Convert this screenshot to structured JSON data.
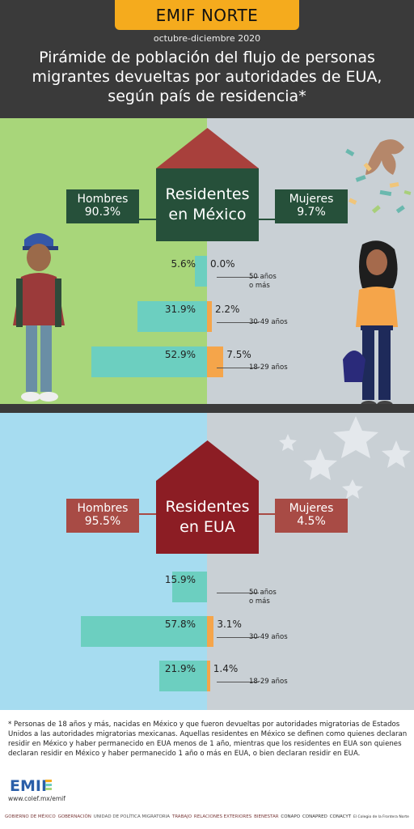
{
  "header": {
    "brand": "EMIF NORTE",
    "period": "octubre-diciembre 2020",
    "title": "Pirámide de población del flujo de personas migrantes devueltas por autoridades de EUA, según país de residencia*"
  },
  "colors": {
    "header_bg": "#3a3a3a",
    "accent": "#f5ab1d",
    "men_bar": "#6ccfc0",
    "women_bar": "#f5a54a",
    "mx_left_bg": "#a8d67a",
    "mx_right_bg": "#c9d0d5",
    "mx_house": "#26503a",
    "mx_roof": "#a8403c",
    "us_left_bg": "#a6dcf0",
    "us_right_bg": "#c9d0d5",
    "us_house": "#8c1d24",
    "us_roof": "#8c1d24",
    "us_tag": "#a84b45"
  },
  "chart_data": [
    {
      "type": "bar",
      "house_title_1": "Residentes",
      "house_title_2": "en México",
      "men_label": "Hombres",
      "men_total": "90.3%",
      "women_label": "Mujeres",
      "women_total": "9.7%",
      "categories": [
        "50 años o más",
        "30-49 años",
        "18-29 años"
      ],
      "age_line1": [
        "50 años",
        "30-49  años",
        "18-29 años"
      ],
      "age_line2": [
        "o más",
        "",
        ""
      ],
      "series": [
        {
          "name": "Hombres",
          "values": [
            5.6,
            31.9,
            52.9
          ],
          "labels": [
            "5.6%",
            "31.9%",
            "52.9%"
          ]
        },
        {
          "name": "Mujeres",
          "values": [
            0.0,
            2.2,
            7.5
          ],
          "labels": [
            "0.0%",
            "2.2%",
            "7.5%"
          ]
        }
      ]
    },
    {
      "type": "bar",
      "house_title_1": "Residentes",
      "house_title_2": "en EUA",
      "men_label": "Hombres",
      "men_total": "95.5%",
      "women_label": "Mujeres",
      "women_total": "4.5%",
      "categories": [
        "50 años o más",
        "30-49 años",
        "18-29 años"
      ],
      "age_line1": [
        "50 años",
        "30-49  años",
        "18-29 años"
      ],
      "age_line2": [
        "o más",
        "",
        ""
      ],
      "series": [
        {
          "name": "Hombres",
          "values": [
            15.9,
            57.8,
            21.9
          ],
          "labels": [
            "15.9%",
            "57.8%",
            "21.9%"
          ]
        },
        {
          "name": "Mujeres",
          "values": [
            0.0,
            3.1,
            1.4
          ],
          "labels": [
            "",
            "3.1%",
            "1.4%"
          ]
        }
      ]
    }
  ],
  "footer": {
    "footnote": "* Personas de 18 años y más, nacidas en México y que fueron devueltas por autoridades migratorias de Estados Unidos a las autoridades migratorias mexicanas. Aquellas residentes en México se definen como quienes declaran residir en México y haber permanecido en EUA menos de 1 año, mientras que los residentes en EUA son quienes declaran residir en México y haber permanecido 1 año o más en EUA, o bien declaran residir en EUA.",
    "logo": "EMIF",
    "site": "www.colef.mx/emif",
    "orgs": [
      "GOBIERNO DE MÉXICO",
      "GOBERNACIÓN",
      "UNIDAD DE POLÍTICA MIGRATORIA",
      "TRABAJO",
      "RELACIONES EXTERIORES",
      "BIENESTAR",
      "CONAPO",
      "CONAPRED",
      "CONACYT",
      "El Colegio de la Frontera Norte"
    ]
  }
}
